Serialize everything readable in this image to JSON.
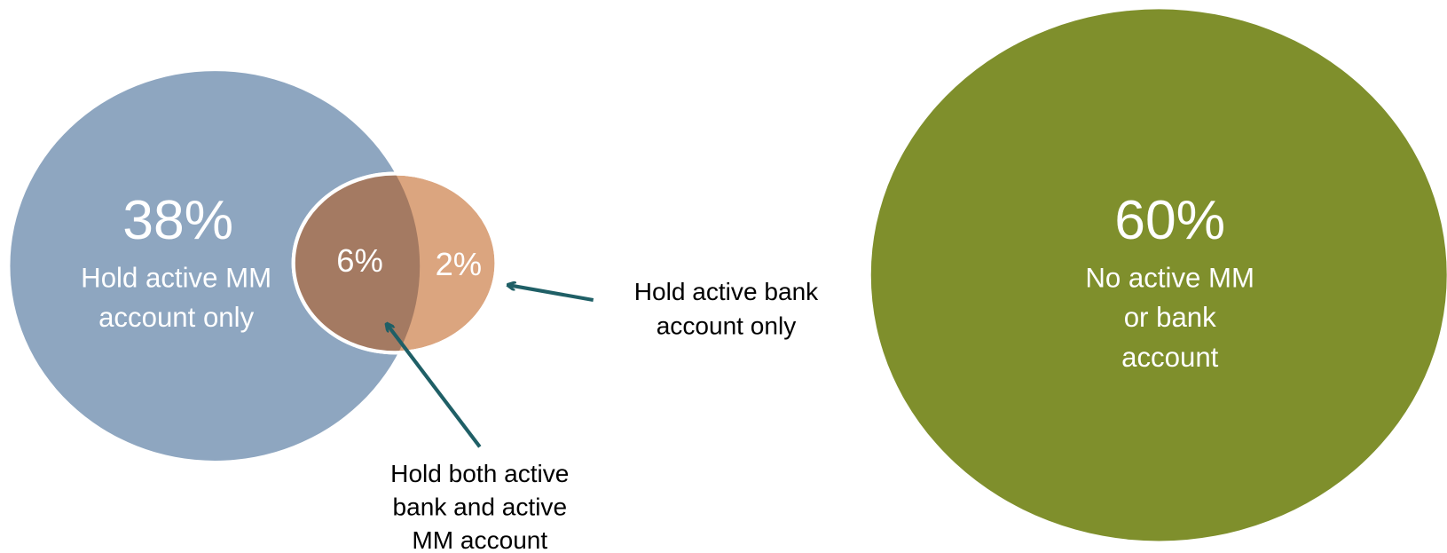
{
  "segments": [
    {
      "percent": "38%",
      "label": [
        "Hold active MM",
        "account only"
      ]
    },
    {
      "percent": "6%"
    },
    {
      "percent": "2%"
    },
    {
      "percent": "60%",
      "label": [
        "No active MM",
        "or bank",
        "account"
      ]
    }
  ],
  "callouts": [
    {
      "label": [
        "Hold active bank",
        "account only"
      ]
    },
    {
      "label": [
        "Hold both active",
        "bank and active",
        "MM account"
      ]
    }
  ]
}
